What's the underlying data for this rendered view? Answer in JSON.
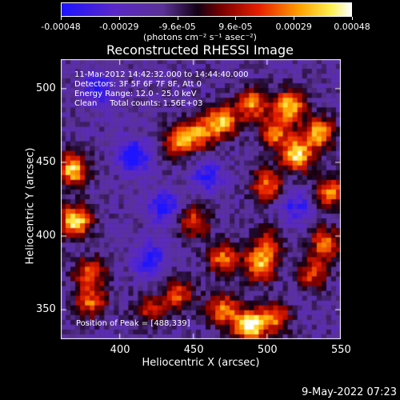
{
  "colorbar": {
    "ticks": [
      "-0.00048",
      "-0.00029",
      "-9.6e-05",
      "9.6e-05",
      "0.00029",
      "0.00048"
    ],
    "units": "(photons cm⁻² s⁻¹ asec⁻²)",
    "min": -0.00048,
    "max": 0.00048
  },
  "chart_data": {
    "type": "heatmap",
    "title": "Reconstructed RHESSI Image",
    "xlabel": "Heliocentric X (arcsec)",
    "ylabel": "Heliocentric Y (arcsec)",
    "xlim": [
      360,
      550
    ],
    "ylim": [
      330,
      520
    ],
    "xticks": [
      "400",
      "450",
      "500",
      "550"
    ],
    "yticks": [
      "350",
      "400",
      "450",
      "500"
    ],
    "annotations": {
      "time": "11-Mar-2012 14:42:32.000 to 14:44:40.000",
      "detectors": "Detectors: 3F 5F 6F 7F 8F, Att 0",
      "energy": "Energy Range: 12.0 - 25.0 keV",
      "method": "Clean     Total counts: 1.56E+03",
      "peak": "Position of Peak = [488,339]"
    },
    "bright_regions": [
      {
        "x": 370,
        "y": 410,
        "intensity": 0.95
      },
      {
        "x": 368,
        "y": 445,
        "intensity": 0.85
      },
      {
        "x": 380,
        "y": 375,
        "intensity": 0.6
      },
      {
        "x": 440,
        "y": 465,
        "intensity": 0.7
      },
      {
        "x": 455,
        "y": 470,
        "intensity": 0.65
      },
      {
        "x": 470,
        "y": 478,
        "intensity": 0.75
      },
      {
        "x": 490,
        "y": 490,
        "intensity": 0.7
      },
      {
        "x": 515,
        "y": 488,
        "intensity": 0.85
      },
      {
        "x": 535,
        "y": 470,
        "intensity": 0.8
      },
      {
        "x": 520,
        "y": 455,
        "intensity": 0.9
      },
      {
        "x": 505,
        "y": 470,
        "intensity": 0.65
      },
      {
        "x": 543,
        "y": 430,
        "intensity": 0.7
      },
      {
        "x": 500,
        "y": 435,
        "intensity": 0.65
      },
      {
        "x": 450,
        "y": 410,
        "intensity": 0.55
      },
      {
        "x": 470,
        "y": 385,
        "intensity": 0.65
      },
      {
        "x": 495,
        "y": 380,
        "intensity": 0.75
      },
      {
        "x": 500,
        "y": 395,
        "intensity": 0.5
      },
      {
        "x": 530,
        "y": 375,
        "intensity": 0.55
      },
      {
        "x": 540,
        "y": 395,
        "intensity": 0.65
      },
      {
        "x": 488,
        "y": 339,
        "intensity": 1.0
      },
      {
        "x": 470,
        "y": 350,
        "intensity": 0.7
      },
      {
        "x": 505,
        "y": 345,
        "intensity": 0.65
      },
      {
        "x": 440,
        "y": 360,
        "intensity": 0.55
      },
      {
        "x": 420,
        "y": 350,
        "intensity": 0.45
      },
      {
        "x": 380,
        "y": 355,
        "intensity": 0.6
      }
    ],
    "dark_regions": [
      {
        "x": 410,
        "y": 455,
        "intensity": -0.6
      },
      {
        "x": 430,
        "y": 420,
        "intensity": -0.5
      },
      {
        "x": 385,
        "y": 500,
        "intensity": -0.45
      },
      {
        "x": 420,
        "y": 385,
        "intensity": -0.5
      },
      {
        "x": 460,
        "y": 440,
        "intensity": -0.45
      },
      {
        "x": 520,
        "y": 420,
        "intensity": -0.4
      }
    ]
  },
  "footer": {
    "datestamp": "9-May-2022 07:23"
  }
}
